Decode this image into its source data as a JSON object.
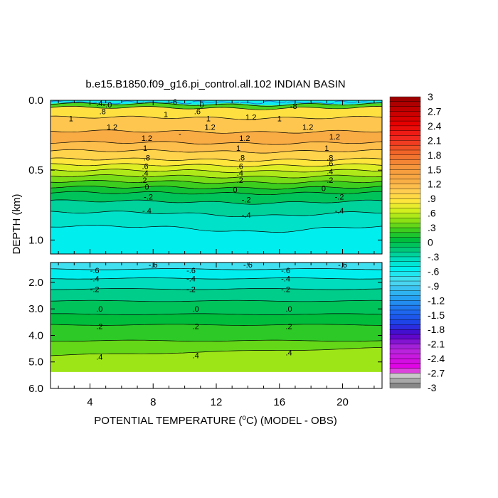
{
  "chart_data": {
    "type": "heatmap",
    "title": "b.e15.B1850.f09_g16.pi_control.all.102 INDIAN BASIN",
    "xlabel_pre": "POTENTIAL TEMPERATURE (",
    "xlabel_sup": "o",
    "xlabel_post": "C) (MODEL - OBS)",
    "ylabel": "DEPTH (km)",
    "xlim": [
      1.5,
      22.5
    ],
    "x_ticks": [
      4,
      8,
      12,
      16,
      20
    ],
    "x_tick_labels": [
      "4",
      "8",
      "12",
      "16",
      "20"
    ],
    "upper_panel": {
      "ylim": [
        0.0,
        1.1
      ],
      "y_ticks": [
        0.0,
        0.5,
        1.0
      ],
      "y_tick_labels": [
        "0.0",
        "0.5",
        "1.0"
      ]
    },
    "lower_panel": {
      "ylim": [
        1.25,
        6.0
      ],
      "y_ticks": [
        2.0,
        3.0,
        4.0,
        5.0,
        6.0
      ],
      "y_tick_labels": [
        "2.0",
        "3.0",
        "4.0",
        "5.0",
        "6.0"
      ]
    },
    "colorbar": {
      "min": -3,
      "max": 3,
      "step": 0.1,
      "labels": [
        "3",
        "2.7",
        "2.4",
        "2.1",
        "1.8",
        "1.5",
        "1.2",
        ".9",
        ".6",
        ".3",
        "0",
        "-.3",
        "-.6",
        "-.9",
        "-1.2",
        "-1.5",
        "-1.8",
        "-2.1",
        "-2.4",
        "-2.7",
        "-3"
      ]
    },
    "upper_bands": [
      {
        "depth_top": 0.0,
        "depth_bottom": 0.02,
        "value": -0.6
      },
      {
        "depth_top": 0.02,
        "depth_bottom": 0.05,
        "value": 0.3
      },
      {
        "depth_top": 0.05,
        "depth_bottom": 0.12,
        "value": 0.9
      },
      {
        "depth_top": 0.12,
        "depth_bottom": 0.22,
        "value": 1.1
      },
      {
        "depth_top": 0.22,
        "depth_bottom": 0.3,
        "value": 1.3
      },
      {
        "depth_top": 0.3,
        "depth_bottom": 0.36,
        "value": 1.15
      },
      {
        "depth_top": 0.36,
        "depth_bottom": 0.42,
        "value": 1.0
      },
      {
        "depth_top": 0.42,
        "depth_bottom": 0.46,
        "value": 0.85
      },
      {
        "depth_top": 0.46,
        "depth_bottom": 0.5,
        "value": 0.7
      },
      {
        "depth_top": 0.5,
        "depth_bottom": 0.54,
        "value": 0.55
      },
      {
        "depth_top": 0.54,
        "depth_bottom": 0.58,
        "value": 0.4
      },
      {
        "depth_top": 0.58,
        "depth_bottom": 0.62,
        "value": 0.25
      },
      {
        "depth_top": 0.62,
        "depth_bottom": 0.66,
        "value": 0.1
      },
      {
        "depth_top": 0.66,
        "depth_bottom": 0.72,
        "value": -0.05
      },
      {
        "depth_top": 0.72,
        "depth_bottom": 0.8,
        "value": -0.25
      },
      {
        "depth_top": 0.8,
        "depth_bottom": 0.9,
        "value": -0.4
      },
      {
        "depth_top": 0.9,
        "depth_bottom": 1.1,
        "value": -0.55
      }
    ],
    "lower_bands": [
      {
        "depth_top": 1.25,
        "depth_bottom": 1.5,
        "value": -0.75
      },
      {
        "depth_top": 1.5,
        "depth_bottom": 1.85,
        "value": -0.55
      },
      {
        "depth_top": 1.85,
        "depth_bottom": 2.25,
        "value": -0.35
      },
      {
        "depth_top": 2.25,
        "depth_bottom": 2.7,
        "value": -0.2
      },
      {
        "depth_top": 2.7,
        "depth_bottom": 3.2,
        "value": -0.05
      },
      {
        "depth_top": 3.2,
        "depth_bottom": 3.6,
        "value": 0.05
      },
      {
        "depth_top": 3.6,
        "depth_bottom": 4.2,
        "value": 0.2
      },
      {
        "depth_top": 4.2,
        "depth_bottom": 4.75,
        "value": 0.35
      },
      {
        "depth_top": 4.75,
        "depth_bottom": 5.38,
        "value": 0.5
      }
    ],
    "upper_contours": [
      {
        "depth": 0.025
      },
      {
        "depth": 0.05
      },
      {
        "depth": 0.12
      },
      {
        "depth": 0.22
      },
      {
        "depth": 0.3
      },
      {
        "depth": 0.36
      },
      {
        "depth": 0.42
      },
      {
        "depth": 0.46
      },
      {
        "depth": 0.5
      },
      {
        "depth": 0.54
      },
      {
        "depth": 0.58
      },
      {
        "depth": 0.62
      },
      {
        "depth": 0.66
      },
      {
        "depth": 0.72
      },
      {
        "depth": 0.8
      },
      {
        "depth": 0.9
      }
    ],
    "lower_contours": [
      {
        "depth": 1.5
      },
      {
        "depth": 1.85
      },
      {
        "depth": 2.25
      },
      {
        "depth": 2.7
      },
      {
        "depth": 3.2
      },
      {
        "depth": 3.6
      },
      {
        "depth": 4.2
      },
      {
        "depth": 4.75
      }
    ],
    "upper_annotations": [
      {
        "text": ".4",
        "x": 4.6,
        "depth": 0.02
      },
      {
        "text": "-.0",
        "x": 5.1,
        "depth": 0.03
      },
      {
        "text": "-6",
        "x": 9.3,
        "depth": 0.01
      },
      {
        "text": "-0",
        "x": 11.0,
        "depth": 0.03
      },
      {
        "text": ".6",
        "x": 10.8,
        "depth": 0.08
      },
      {
        "text": "-8",
        "x": 16.9,
        "depth": 0.04
      },
      {
        "text": ".8",
        "x": 4.8,
        "depth": 0.08
      },
      {
        "text": "1",
        "x": 2.8,
        "depth": 0.13
      },
      {
        "text": "1",
        "x": 8.8,
        "depth": 0.1
      },
      {
        "text": "1",
        "x": 11.5,
        "depth": 0.13
      },
      {
        "text": "1.2",
        "x": 14.2,
        "depth": 0.12
      },
      {
        "text": "1",
        "x": 16.0,
        "depth": 0.13
      },
      {
        "text": "1.2",
        "x": 5.4,
        "depth": 0.19
      },
      {
        "text": "1.2",
        "x": 11.6,
        "depth": 0.19
      },
      {
        "text": "1.2",
        "x": 17.8,
        "depth": 0.19
      },
      {
        "text": "-",
        "x": 9.7,
        "depth": 0.24
      },
      {
        "text": "1.2",
        "x": 7.6,
        "depth": 0.27
      },
      {
        "text": "1.2",
        "x": 13.8,
        "depth": 0.27
      },
      {
        "text": "1.2",
        "x": 19.5,
        "depth": 0.26
      },
      {
        "text": "1",
        "x": 7.5,
        "depth": 0.34
      },
      {
        "text": "1",
        "x": 13.4,
        "depth": 0.34
      },
      {
        "text": "1",
        "x": 19.0,
        "depth": 0.34
      },
      {
        "text": ".8",
        "x": 7.6,
        "depth": 0.41
      },
      {
        "text": ".8",
        "x": 13.6,
        "depth": 0.41
      },
      {
        "text": ".8",
        "x": 19.2,
        "depth": 0.41
      },
      {
        "text": ".6",
        "x": 7.5,
        "depth": 0.47
      },
      {
        "text": ".6",
        "x": 13.5,
        "depth": 0.47
      },
      {
        "text": ".6",
        "x": 19.2,
        "depth": 0.45
      },
      {
        "text": ".4",
        "x": 7.5,
        "depth": 0.52
      },
      {
        "text": ".4",
        "x": 13.5,
        "depth": 0.52
      },
      {
        "text": ".4",
        "x": 19.2,
        "depth": 0.51
      },
      {
        "text": ".2",
        "x": 7.4,
        "depth": 0.57
      },
      {
        "text": ".2",
        "x": 13.5,
        "depth": 0.57
      },
      {
        "text": ".2",
        "x": 19.2,
        "depth": 0.57
      },
      {
        "text": "0",
        "x": 7.6,
        "depth": 0.62
      },
      {
        "text": "0",
        "x": 13.2,
        "depth": 0.64
      },
      {
        "text": "0",
        "x": 18.8,
        "depth": 0.63
      },
      {
        "text": "-.2",
        "x": 7.7,
        "depth": 0.69
      },
      {
        "text": "-.2",
        "x": 13.9,
        "depth": 0.71
      },
      {
        "text": "-.2",
        "x": 19.8,
        "depth": 0.69
      },
      {
        "text": "-.4",
        "x": 7.6,
        "depth": 0.79
      },
      {
        "text": "-.4",
        "x": 13.9,
        "depth": 0.82
      },
      {
        "text": "-.4",
        "x": 19.8,
        "depth": 0.79
      }
    ],
    "lower_annotations": [
      {
        "text": "-.6",
        "x": 8.0,
        "depth": 1.33
      },
      {
        "text": "-.6",
        "x": 14.0,
        "depth": 1.33
      },
      {
        "text": "-.6",
        "x": 20.0,
        "depth": 1.33
      },
      {
        "text": "-.6",
        "x": 4.3,
        "depth": 1.55
      },
      {
        "text": "-.6",
        "x": 10.4,
        "depth": 1.55
      },
      {
        "text": "-.6",
        "x": 16.4,
        "depth": 1.55
      },
      {
        "text": "-.4",
        "x": 4.3,
        "depth": 1.85
      },
      {
        "text": "-.4",
        "x": 10.4,
        "depth": 1.85
      },
      {
        "text": "-.4",
        "x": 16.4,
        "depth": 1.85
      },
      {
        "text": "-.2",
        "x": 4.3,
        "depth": 2.25
      },
      {
        "text": "-.2",
        "x": 10.4,
        "depth": 2.25
      },
      {
        "text": "-.2",
        "x": 16.4,
        "depth": 2.25
      },
      {
        "text": ".0",
        "x": 4.6,
        "depth": 3.0
      },
      {
        "text": ".0",
        "x": 10.7,
        "depth": 3.0
      },
      {
        "text": ".0",
        "x": 16.6,
        "depth": 3.0
      },
      {
        "text": ".2",
        "x": 4.6,
        "depth": 3.65
      },
      {
        "text": ".2",
        "x": 10.7,
        "depth": 3.65
      },
      {
        "text": ".2",
        "x": 16.6,
        "depth": 3.65
      },
      {
        "text": ".4",
        "x": 4.6,
        "depth": 4.8
      },
      {
        "text": ".4",
        "x": 10.7,
        "depth": 4.75
      },
      {
        "text": ".4",
        "x": 16.6,
        "depth": 4.65
      }
    ]
  }
}
